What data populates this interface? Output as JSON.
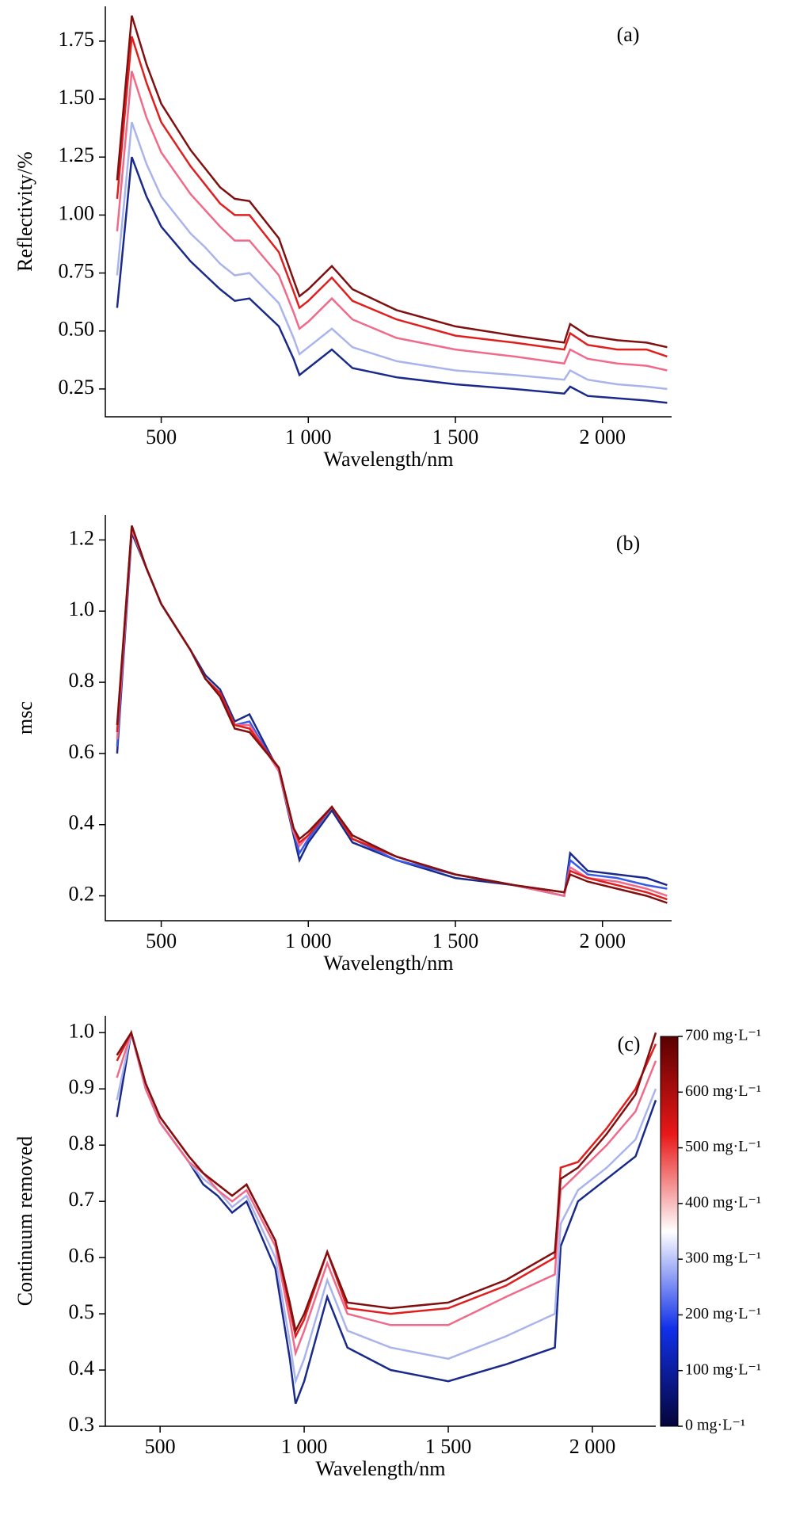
{
  "chart_data": [
    {
      "type": "line",
      "panel_label": "(a)",
      "ylabel": "Reflectivity/%",
      "xlabel": "Wavelength/nm",
      "xlim": [
        310,
        2235
      ],
      "ylim": [
        0.13,
        1.9
      ],
      "xticks": [
        500,
        {
          "value": 1000,
          "label": "1 000"
        },
        {
          "value": 1500,
          "label": "1 500"
        },
        {
          "value": 2000,
          "label": "2 000"
        }
      ],
      "yticks": [
        0.25,
        {
          "value": 0.5,
          "label": "0.50"
        },
        0.75,
        {
          "value": 1.0,
          "label": "1.00"
        },
        1.25,
        {
          "value": 1.5,
          "label": "1.50"
        },
        1.75
      ],
      "x": [
        350,
        400,
        450,
        500,
        600,
        650,
        700,
        750,
        800,
        900,
        950,
        970,
        1000,
        1080,
        1150,
        1300,
        1500,
        1700,
        1870,
        1890,
        1950,
        2050,
        2150,
        2220
      ],
      "series": [
        {
          "color": "#1a2a8a",
          "values": [
            0.6,
            1.25,
            1.08,
            0.95,
            0.8,
            0.74,
            0.68,
            0.63,
            0.64,
            0.52,
            0.38,
            0.31,
            0.34,
            0.42,
            0.34,
            0.3,
            0.27,
            0.25,
            0.23,
            0.26,
            0.22,
            0.21,
            0.2,
            0.19
          ]
        },
        {
          "color": "#aab4ec",
          "values": [
            0.74,
            1.4,
            1.22,
            1.08,
            0.92,
            0.86,
            0.79,
            0.74,
            0.75,
            0.62,
            0.47,
            0.4,
            0.43,
            0.51,
            0.43,
            0.37,
            0.33,
            0.31,
            0.29,
            0.33,
            0.29,
            0.27,
            0.26,
            0.25
          ]
        },
        {
          "color": "#f06a8a",
          "values": [
            0.93,
            1.62,
            1.42,
            1.27,
            1.09,
            1.02,
            0.95,
            0.89,
            0.89,
            0.74,
            0.58,
            0.51,
            0.54,
            0.64,
            0.55,
            0.47,
            0.42,
            0.39,
            0.36,
            0.42,
            0.38,
            0.36,
            0.35,
            0.33
          ]
        },
        {
          "color": "#e01e1e",
          "values": [
            1.07,
            1.77,
            1.57,
            1.4,
            1.21,
            1.13,
            1.05,
            1.0,
            1.0,
            0.84,
            0.67,
            0.6,
            0.63,
            0.73,
            0.63,
            0.55,
            0.48,
            0.45,
            0.42,
            0.49,
            0.44,
            0.42,
            0.42,
            0.39
          ]
        },
        {
          "color": "#801010",
          "values": [
            1.15,
            1.86,
            1.65,
            1.48,
            1.28,
            1.2,
            1.12,
            1.07,
            1.06,
            0.9,
            0.72,
            0.65,
            0.68,
            0.78,
            0.68,
            0.59,
            0.52,
            0.48,
            0.45,
            0.53,
            0.48,
            0.46,
            0.45,
            0.43
          ]
        }
      ]
    },
    {
      "type": "line",
      "panel_label": "(b)",
      "ylabel": "msc",
      "xlabel": "Wavelength/nm",
      "xlim": [
        310,
        2235
      ],
      "ylim": [
        0.13,
        1.27
      ],
      "xticks": [
        500,
        {
          "value": 1000,
          "label": "1 000"
        },
        {
          "value": 1500,
          "label": "1 500"
        },
        {
          "value": 2000,
          "label": "2 000"
        }
      ],
      "yticks": [
        0.2,
        0.4,
        0.6,
        0.8,
        {
          "value": 1.0,
          "label": "1.0"
        },
        1.2
      ],
      "x": [
        350,
        400,
        450,
        500,
        600,
        650,
        700,
        750,
        800,
        900,
        950,
        970,
        1000,
        1080,
        1150,
        1300,
        1500,
        1700,
        1870,
        1890,
        1950,
        2050,
        2150,
        2220
      ],
      "series": [
        {
          "color": "#1a2a8a",
          "values": [
            0.6,
            1.22,
            1.12,
            1.02,
            0.89,
            0.82,
            0.78,
            0.69,
            0.71,
            0.55,
            0.37,
            0.3,
            0.35,
            0.44,
            0.35,
            0.3,
            0.25,
            0.23,
            0.2,
            0.32,
            0.27,
            0.26,
            0.25,
            0.23
          ]
        },
        {
          "color": "#3a5ae8",
          "values": [
            0.62,
            1.23,
            1.12,
            1.02,
            0.89,
            0.81,
            0.77,
            0.68,
            0.69,
            0.55,
            0.38,
            0.32,
            0.36,
            0.45,
            0.36,
            0.3,
            0.26,
            0.23,
            0.2,
            0.3,
            0.26,
            0.25,
            0.23,
            0.22
          ]
        },
        {
          "color": "#f06a8a",
          "values": [
            0.64,
            1.23,
            1.12,
            1.02,
            0.89,
            0.81,
            0.77,
            0.68,
            0.68,
            0.55,
            0.38,
            0.34,
            0.37,
            0.45,
            0.36,
            0.31,
            0.26,
            0.23,
            0.2,
            0.28,
            0.25,
            0.24,
            0.22,
            0.2
          ]
        },
        {
          "color": "#e01e1e",
          "values": [
            0.66,
            1.24,
            1.12,
            1.02,
            0.89,
            0.81,
            0.77,
            0.68,
            0.67,
            0.56,
            0.39,
            0.35,
            0.37,
            0.45,
            0.36,
            0.31,
            0.26,
            0.23,
            0.21,
            0.27,
            0.25,
            0.23,
            0.21,
            0.19
          ]
        },
        {
          "color": "#801010",
          "values": [
            0.68,
            1.24,
            1.12,
            1.02,
            0.89,
            0.81,
            0.76,
            0.67,
            0.66,
            0.56,
            0.39,
            0.36,
            0.38,
            0.45,
            0.37,
            0.31,
            0.26,
            0.23,
            0.21,
            0.26,
            0.24,
            0.22,
            0.2,
            0.18
          ]
        }
      ]
    },
    {
      "type": "line",
      "panel_label": "(c)",
      "ylabel": "Continuum removed",
      "xlabel": "Wavelength/nm",
      "xlim": [
        310,
        2220
      ],
      "ylim": [
        0.3,
        1.03
      ],
      "xticks": [
        500,
        {
          "value": 1000,
          "label": "1 000"
        },
        {
          "value": 1500,
          "label": "1 500"
        },
        {
          "value": 2000,
          "label": "2 000"
        }
      ],
      "yticks": [
        0.3,
        0.4,
        0.5,
        0.6,
        0.7,
        0.8,
        0.9,
        {
          "value": 1.0,
          "label": "1.0"
        }
      ],
      "x": [
        350,
        400,
        450,
        500,
        600,
        650,
        700,
        750,
        800,
        900,
        950,
        970,
        1000,
        1080,
        1150,
        1300,
        1500,
        1700,
        1870,
        1890,
        1950,
        2050,
        2150,
        2220
      ],
      "series": [
        {
          "color": "#1a2a8a",
          "values": [
            0.85,
            1.0,
            0.9,
            0.84,
            0.77,
            0.73,
            0.71,
            0.68,
            0.7,
            0.58,
            0.42,
            0.34,
            0.38,
            0.53,
            0.44,
            0.4,
            0.38,
            0.41,
            0.44,
            0.62,
            0.7,
            0.74,
            0.78,
            0.88
          ]
        },
        {
          "color": "#aab4ec",
          "values": [
            0.88,
            1.0,
            0.9,
            0.84,
            0.77,
            0.74,
            0.72,
            0.69,
            0.71,
            0.6,
            0.45,
            0.38,
            0.42,
            0.56,
            0.47,
            0.44,
            0.42,
            0.46,
            0.5,
            0.66,
            0.72,
            0.76,
            0.81,
            0.9
          ]
        },
        {
          "color": "#f06a8a",
          "values": [
            0.92,
            1.0,
            0.9,
            0.84,
            0.77,
            0.75,
            0.72,
            0.7,
            0.72,
            0.62,
            0.49,
            0.43,
            0.47,
            0.59,
            0.5,
            0.48,
            0.48,
            0.53,
            0.57,
            0.72,
            0.75,
            0.8,
            0.86,
            0.95
          ]
        },
        {
          "color": "#e01e1e",
          "values": [
            0.95,
            1.0,
            0.91,
            0.85,
            0.78,
            0.75,
            0.73,
            0.71,
            0.73,
            0.63,
            0.51,
            0.46,
            0.49,
            0.61,
            0.51,
            0.5,
            0.51,
            0.55,
            0.6,
            0.76,
            0.77,
            0.83,
            0.9,
            0.98
          ]
        },
        {
          "color": "#801010",
          "values": [
            0.96,
            1.0,
            0.91,
            0.85,
            0.78,
            0.75,
            0.73,
            0.71,
            0.73,
            0.63,
            0.52,
            0.47,
            0.5,
            0.61,
            0.52,
            0.51,
            0.52,
            0.56,
            0.61,
            0.74,
            0.76,
            0.82,
            0.89,
            1.0
          ]
        }
      ],
      "colorbar": {
        "lim": [
          0,
          700
        ],
        "colors": [
          "#05053a",
          "#1030e8",
          "#ffffff",
          "#e81818",
          "#5a0000"
        ],
        "ticks": [
          {
            "value": 0,
            "label": "0 mg·L⁻¹"
          },
          {
            "value": 100,
            "label": "100 mg·L⁻¹"
          },
          {
            "value": 200,
            "label": "200 mg·L⁻¹"
          },
          {
            "value": 300,
            "label": "300 mg·L⁻¹"
          },
          {
            "value": 400,
            "label": "400 mg·L⁻¹"
          },
          {
            "value": 500,
            "label": "500 mg·L⁻¹"
          },
          {
            "value": 600,
            "label": "600 mg·L⁻¹"
          },
          {
            "value": 700,
            "label": "700 mg·L⁻¹"
          }
        ]
      }
    }
  ]
}
